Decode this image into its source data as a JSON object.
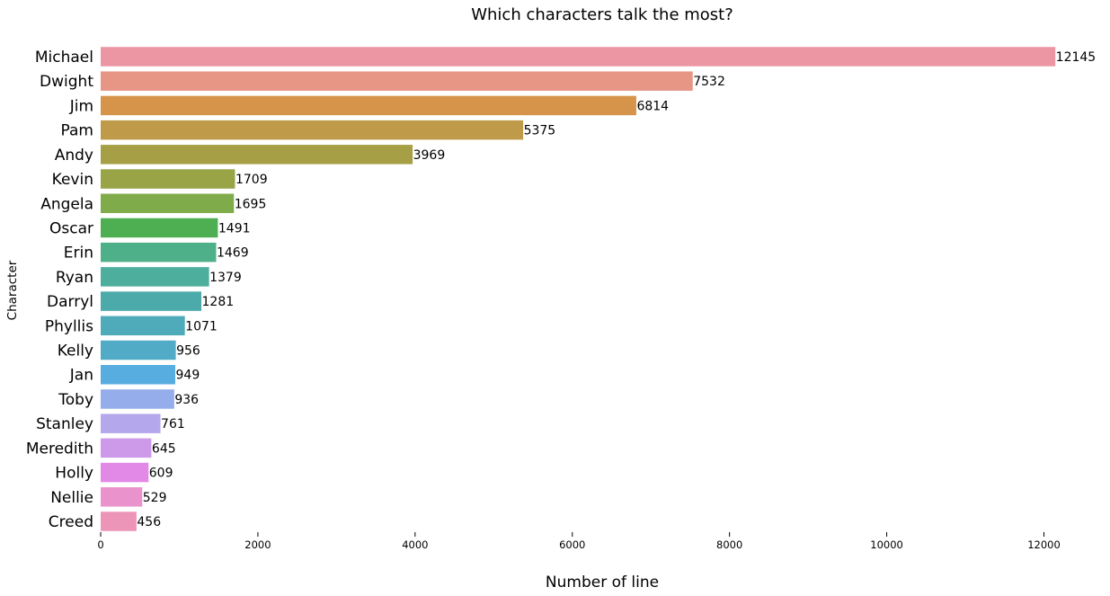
{
  "chart_data": {
    "type": "bar",
    "orientation": "horizontal",
    "title": "Which characters talk the most?",
    "xlabel": "Number of line",
    "ylabel": "Character",
    "xlim": [
      0,
      13000
    ],
    "xticks": [
      0,
      2000,
      4000,
      6000,
      8000,
      10000,
      12000
    ],
    "grid": false,
    "legend": "none",
    "categories": [
      "Michael",
      "Dwight",
      "Jim",
      "Pam",
      "Andy",
      "Kevin",
      "Angela",
      "Oscar",
      "Erin",
      "Ryan",
      "Darryl",
      "Phyllis",
      "Kelly",
      "Jan",
      "Toby",
      "Stanley",
      "Meredith",
      "Holly",
      "Nellie",
      "Creed"
    ],
    "values": [
      12145,
      7532,
      6814,
      5375,
      3969,
      1709,
      1695,
      1491,
      1469,
      1379,
      1281,
      1071,
      956,
      949,
      936,
      761,
      645,
      609,
      529,
      456
    ],
    "colors": [
      "#ec96a4",
      "#e79686",
      "#d6944b",
      "#bf9a49",
      "#a79f46",
      "#98a446",
      "#80ab4a",
      "#4daf52",
      "#4db088",
      "#4dae9e",
      "#4daaaa",
      "#4fabb9",
      "#52abc6",
      "#58ade0",
      "#95adea",
      "#b5a7ec",
      "#cd99e9",
      "#e289e8",
      "#e992cc",
      "#ec95b8"
    ]
  }
}
